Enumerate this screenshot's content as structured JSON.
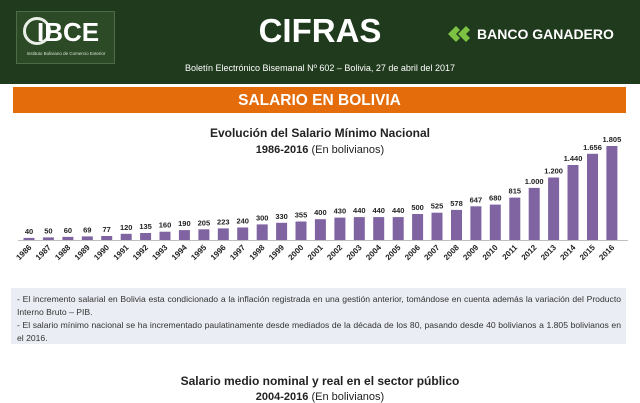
{
  "header": {
    "logo_text": "IBCE",
    "logo_subtitle": "Instituto Boliviano de Comercio Exterior",
    "title": "CIFRAS",
    "bank_name": "BANCO GANADERO",
    "bulletin": "Boletín Electrónico Bisemanal Nº 602 – Bolivia, 27 de abril del 2017",
    "colors": {
      "background": "#1f3a1c",
      "bank_icon": "#7dc242"
    }
  },
  "section": {
    "title": "SALARIO EN BOLIVIA",
    "color": "#e46c0a"
  },
  "chart": {
    "title": "Evolución del Salario Mínimo Nacional",
    "period": "1986-2016",
    "unit": "(En bolivianos)"
  },
  "chart_data": {
    "type": "bar",
    "title": "Evolución del Salario Mínimo Nacional",
    "subtitle": "1986-2016 (En bolivianos)",
    "categories": [
      "1986",
      "1987",
      "1988",
      "1989",
      "1990",
      "1991",
      "1992",
      "1993",
      "1994",
      "1995",
      "1996",
      "1997",
      "1998",
      "1999",
      "2000",
      "2001",
      "2002",
      "2003",
      "2004",
      "2005",
      "2006",
      "2007",
      "2008",
      "2009",
      "2010",
      "2011",
      "2012",
      "2013",
      "2014",
      "2015",
      "2016"
    ],
    "values": [
      40,
      50,
      60,
      69,
      77,
      120,
      135,
      160,
      190,
      205,
      223,
      240,
      300,
      330,
      355,
      400,
      430,
      440,
      440,
      440,
      500,
      525,
      578,
      647,
      680,
      815,
      1000,
      1200,
      1440,
      1656,
      1805
    ],
    "value_labels": [
      "40",
      "50",
      "60",
      "69",
      "77",
      "120",
      "135",
      "160",
      "190",
      "205",
      "223",
      "240",
      "300",
      "330",
      "355",
      "400",
      "430",
      "440",
      "440",
      "440",
      "500",
      "525",
      "578",
      "647",
      "680",
      "815",
      "1.000",
      "1.200",
      "1.440",
      "1.656",
      "1.805"
    ],
    "ylim": [
      0,
      1805
    ],
    "color": "#8064a2",
    "grid": false,
    "legend": "none"
  },
  "notes": [
    "- El incremento salarial en Bolivia esta condicionado a la inflación registrada en una gestión anterior, tomándose en cuenta además la variación del Producto Interno Bruto – PIB.",
    "- El salario mínimo nacional se ha incrementado paulatinamente desde mediados de la década de los 80, pasando desde 40 bolivianos a 1.805 bolivianos en el 2016."
  ],
  "section2": {
    "title": "Salario medio nominal y real en el sector público",
    "period": "2004-2016",
    "unit": "(En bolivianos)"
  }
}
